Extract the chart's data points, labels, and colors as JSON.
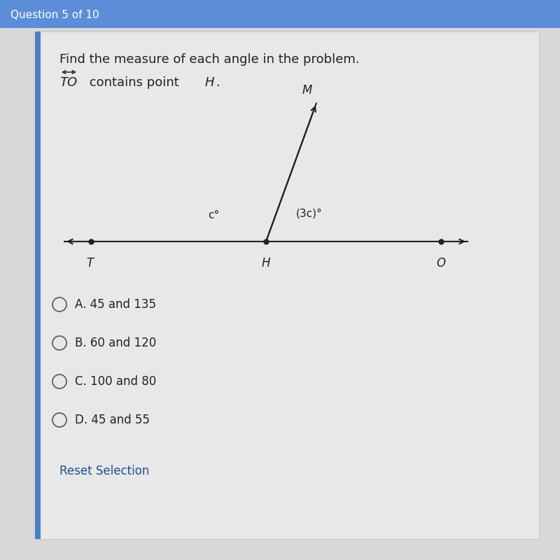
{
  "bg_color": "#d8d8d8",
  "panel_color": "#e8e8e8",
  "header_bar_color": "#5b8dd9",
  "header_text": "Question 5 of 10",
  "header_text_color": "#ffffff",
  "title_text": "Find the measure of each angle in the problem.",
  "diagram_line_color": "#222222",
  "point_T_label": "T",
  "point_H_label": "H",
  "point_O_label": "O",
  "point_M_label": "M",
  "angle_left_label": "c°",
  "angle_right_label": "(3c)°",
  "choices": [
    "A. 45 and 135",
    "B. 60 and 120",
    "C. 100 and 80",
    "D. 45 and 55"
  ],
  "reset_text": "Reset Selection",
  "reset_color": "#1a5296",
  "choice_text_color": "#222222",
  "title_fontsize": 13,
  "choice_fontsize": 12,
  "header_fontsize": 11
}
